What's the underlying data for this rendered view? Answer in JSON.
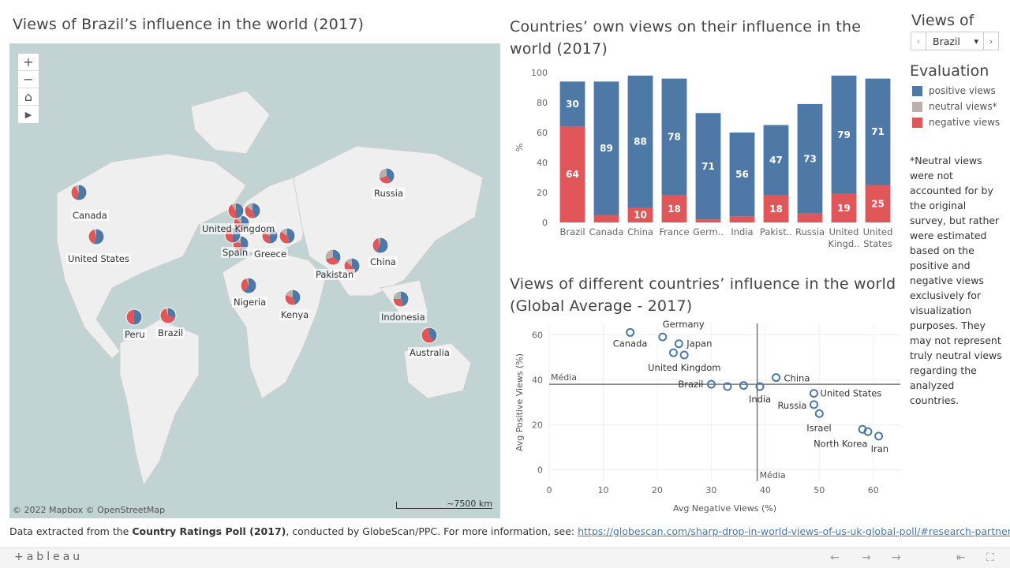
{
  "map": {
    "title": "Views of Brazil’s influence in the world (2017)",
    "attribution": "© 2022 Mapbox  © OpenStreetMap",
    "scale_label": "~7500 km",
    "zoom_in": "+",
    "zoom_out": "−",
    "home": "⌂",
    "play": "▶",
    "countries": [
      {
        "name": "Canada",
        "pos": 0.56,
        "neg": 0.35
      },
      {
        "name": "United States",
        "pos": 0.55,
        "neg": 0.4
      },
      {
        "name": "United Kingdom",
        "pos": 0.5,
        "neg": 0.4
      },
      {
        "name": "Spain",
        "pos": 0.5,
        "neg": 0.4
      },
      {
        "name": "Greece",
        "pos": 0.5,
        "neg": 0.35
      },
      {
        "name": "Russia",
        "pos": 0.4,
        "neg": 0.3
      },
      {
        "name": "China",
        "pos": 0.6,
        "neg": 0.35
      },
      {
        "name": "Pakistan",
        "pos": 0.35,
        "neg": 0.35
      },
      {
        "name": "Nigeria",
        "pos": 0.6,
        "neg": 0.35
      },
      {
        "name": "Kenya",
        "pos": 0.45,
        "neg": 0.35
      },
      {
        "name": "Indonesia",
        "pos": 0.45,
        "neg": 0.3
      },
      {
        "name": "Peru",
        "pos": 0.5,
        "neg": 0.5
      },
      {
        "name": "Brazil",
        "pos": 0.3,
        "neg": 0.65
      },
      {
        "name": "Australia",
        "pos": 0.4,
        "neg": 0.6
      }
    ]
  },
  "bar_chart": {
    "title": "Countries’ own views on their influence in the world (2017)",
    "ylabel": "%",
    "chart_data": {
      "type": "bar",
      "stacked": true,
      "categories": [
        "Brazil",
        "Canada",
        "China",
        "France",
        "Germ..",
        "India",
        "Pakist..",
        "Russia",
        "United Kingd..",
        "United States"
      ],
      "series": [
        {
          "name": "negative views",
          "values": [
            64,
            5,
            10,
            18,
            2,
            4,
            18,
            6,
            19,
            25
          ]
        },
        {
          "name": "neutral views*",
          "values": [
            0,
            0,
            0,
            0,
            0,
            0,
            0,
            0,
            0,
            0
          ]
        },
        {
          "name": "positive views",
          "values": [
            30,
            89,
            88,
            78,
            71,
            56,
            47,
            73,
            79,
            71
          ]
        }
      ],
      "data_labels": {
        "positive": [
          "30",
          "89",
          "88",
          "78",
          "71",
          "56",
          "47",
          "73",
          "79",
          "71"
        ],
        "negative": [
          "64",
          "",
          "10",
          "18",
          "",
          "",
          "18",
          "",
          "19",
          "25"
        ]
      },
      "yticks": [
        "0",
        "20",
        "40",
        "60",
        "80",
        "100"
      ],
      "ylim": [
        0,
        100
      ]
    }
  },
  "scatter": {
    "title": "Views of different countries’ influence in the world (Global Average - 2017)",
    "xlabel": "Avg Negative Views (%)",
    "ylabel": "Avg Positive Views (%)",
    "ref_label_h": "Média",
    "ref_label_v": "Média",
    "chart_data": {
      "type": "scatter",
      "xlim": [
        0,
        65
      ],
      "ylim": [
        -5,
        65
      ],
      "xticks": [
        "0",
        "10",
        "20",
        "30",
        "40",
        "50",
        "60"
      ],
      "yticks": [
        "0",
        "20",
        "40",
        "60"
      ],
      "ref_x": 38.5,
      "ref_y": 38,
      "points": [
        {
          "label": "Canada",
          "x": 15,
          "y": 61
        },
        {
          "label": "Germany",
          "x": 21,
          "y": 59
        },
        {
          "label": "Japan",
          "x": 24,
          "y": 56
        },
        {
          "label": "",
          "x": 23,
          "y": 52
        },
        {
          "label": "United Kingdom",
          "x": 25,
          "y": 51
        },
        {
          "label": "Brazil",
          "x": 30,
          "y": 38
        },
        {
          "label": "",
          "x": 33,
          "y": 37
        },
        {
          "label": "",
          "x": 36,
          "y": 37.5
        },
        {
          "label": "India",
          "x": 39,
          "y": 37
        },
        {
          "label": "China",
          "x": 42,
          "y": 41
        },
        {
          "label": "United States",
          "x": 49,
          "y": 34
        },
        {
          "label": "Russia",
          "x": 49,
          "y": 29
        },
        {
          "label": "Israel",
          "x": 50,
          "y": 25
        },
        {
          "label": "North Korea",
          "x": 58,
          "y": 18
        },
        {
          "label": "",
          "x": 59,
          "y": 17
        },
        {
          "label": "Iran",
          "x": 61,
          "y": 15
        }
      ]
    }
  },
  "sidebar": {
    "views_of_title": "Views of",
    "selected_country": "Brazil",
    "prev_icon": "‹",
    "next_icon": "›",
    "dropdown_icon": "▾",
    "evaluation_title": "Evaluation",
    "legend": [
      {
        "label": "positive views",
        "color": "#4e79a7"
      },
      {
        "label": "neutral views*",
        "color": "#bab0ac"
      },
      {
        "label": "negative views",
        "color": "#e15759"
      }
    ],
    "note": "*Neutral views were not accounted for by the original survey, but rather were estimated based on the positive and negative views exclusively for visualization purposes. They may not represent truly neutral views regarding the analyzed countries."
  },
  "footer": {
    "prefix": "Data extracted from the ",
    "poll": "Country Ratings Poll (2017)",
    "middle": ", conducted by GlobeScan/PPC. For more information, see: ",
    "link": "https://globescan.com/sharp-drop-in-world-views-of-us-uk-global-poll/#research-partners"
  },
  "toolbar": {
    "logo": "+ableau",
    "undo": "←",
    "redo": "→",
    "revert": "⇤",
    "fullscreen": "⛶"
  },
  "colors": {
    "positive": "#4e79a7",
    "neutral": "#bab0ac",
    "negative": "#e15759",
    "land": "#efefef",
    "water": "#c1d3d3"
  }
}
